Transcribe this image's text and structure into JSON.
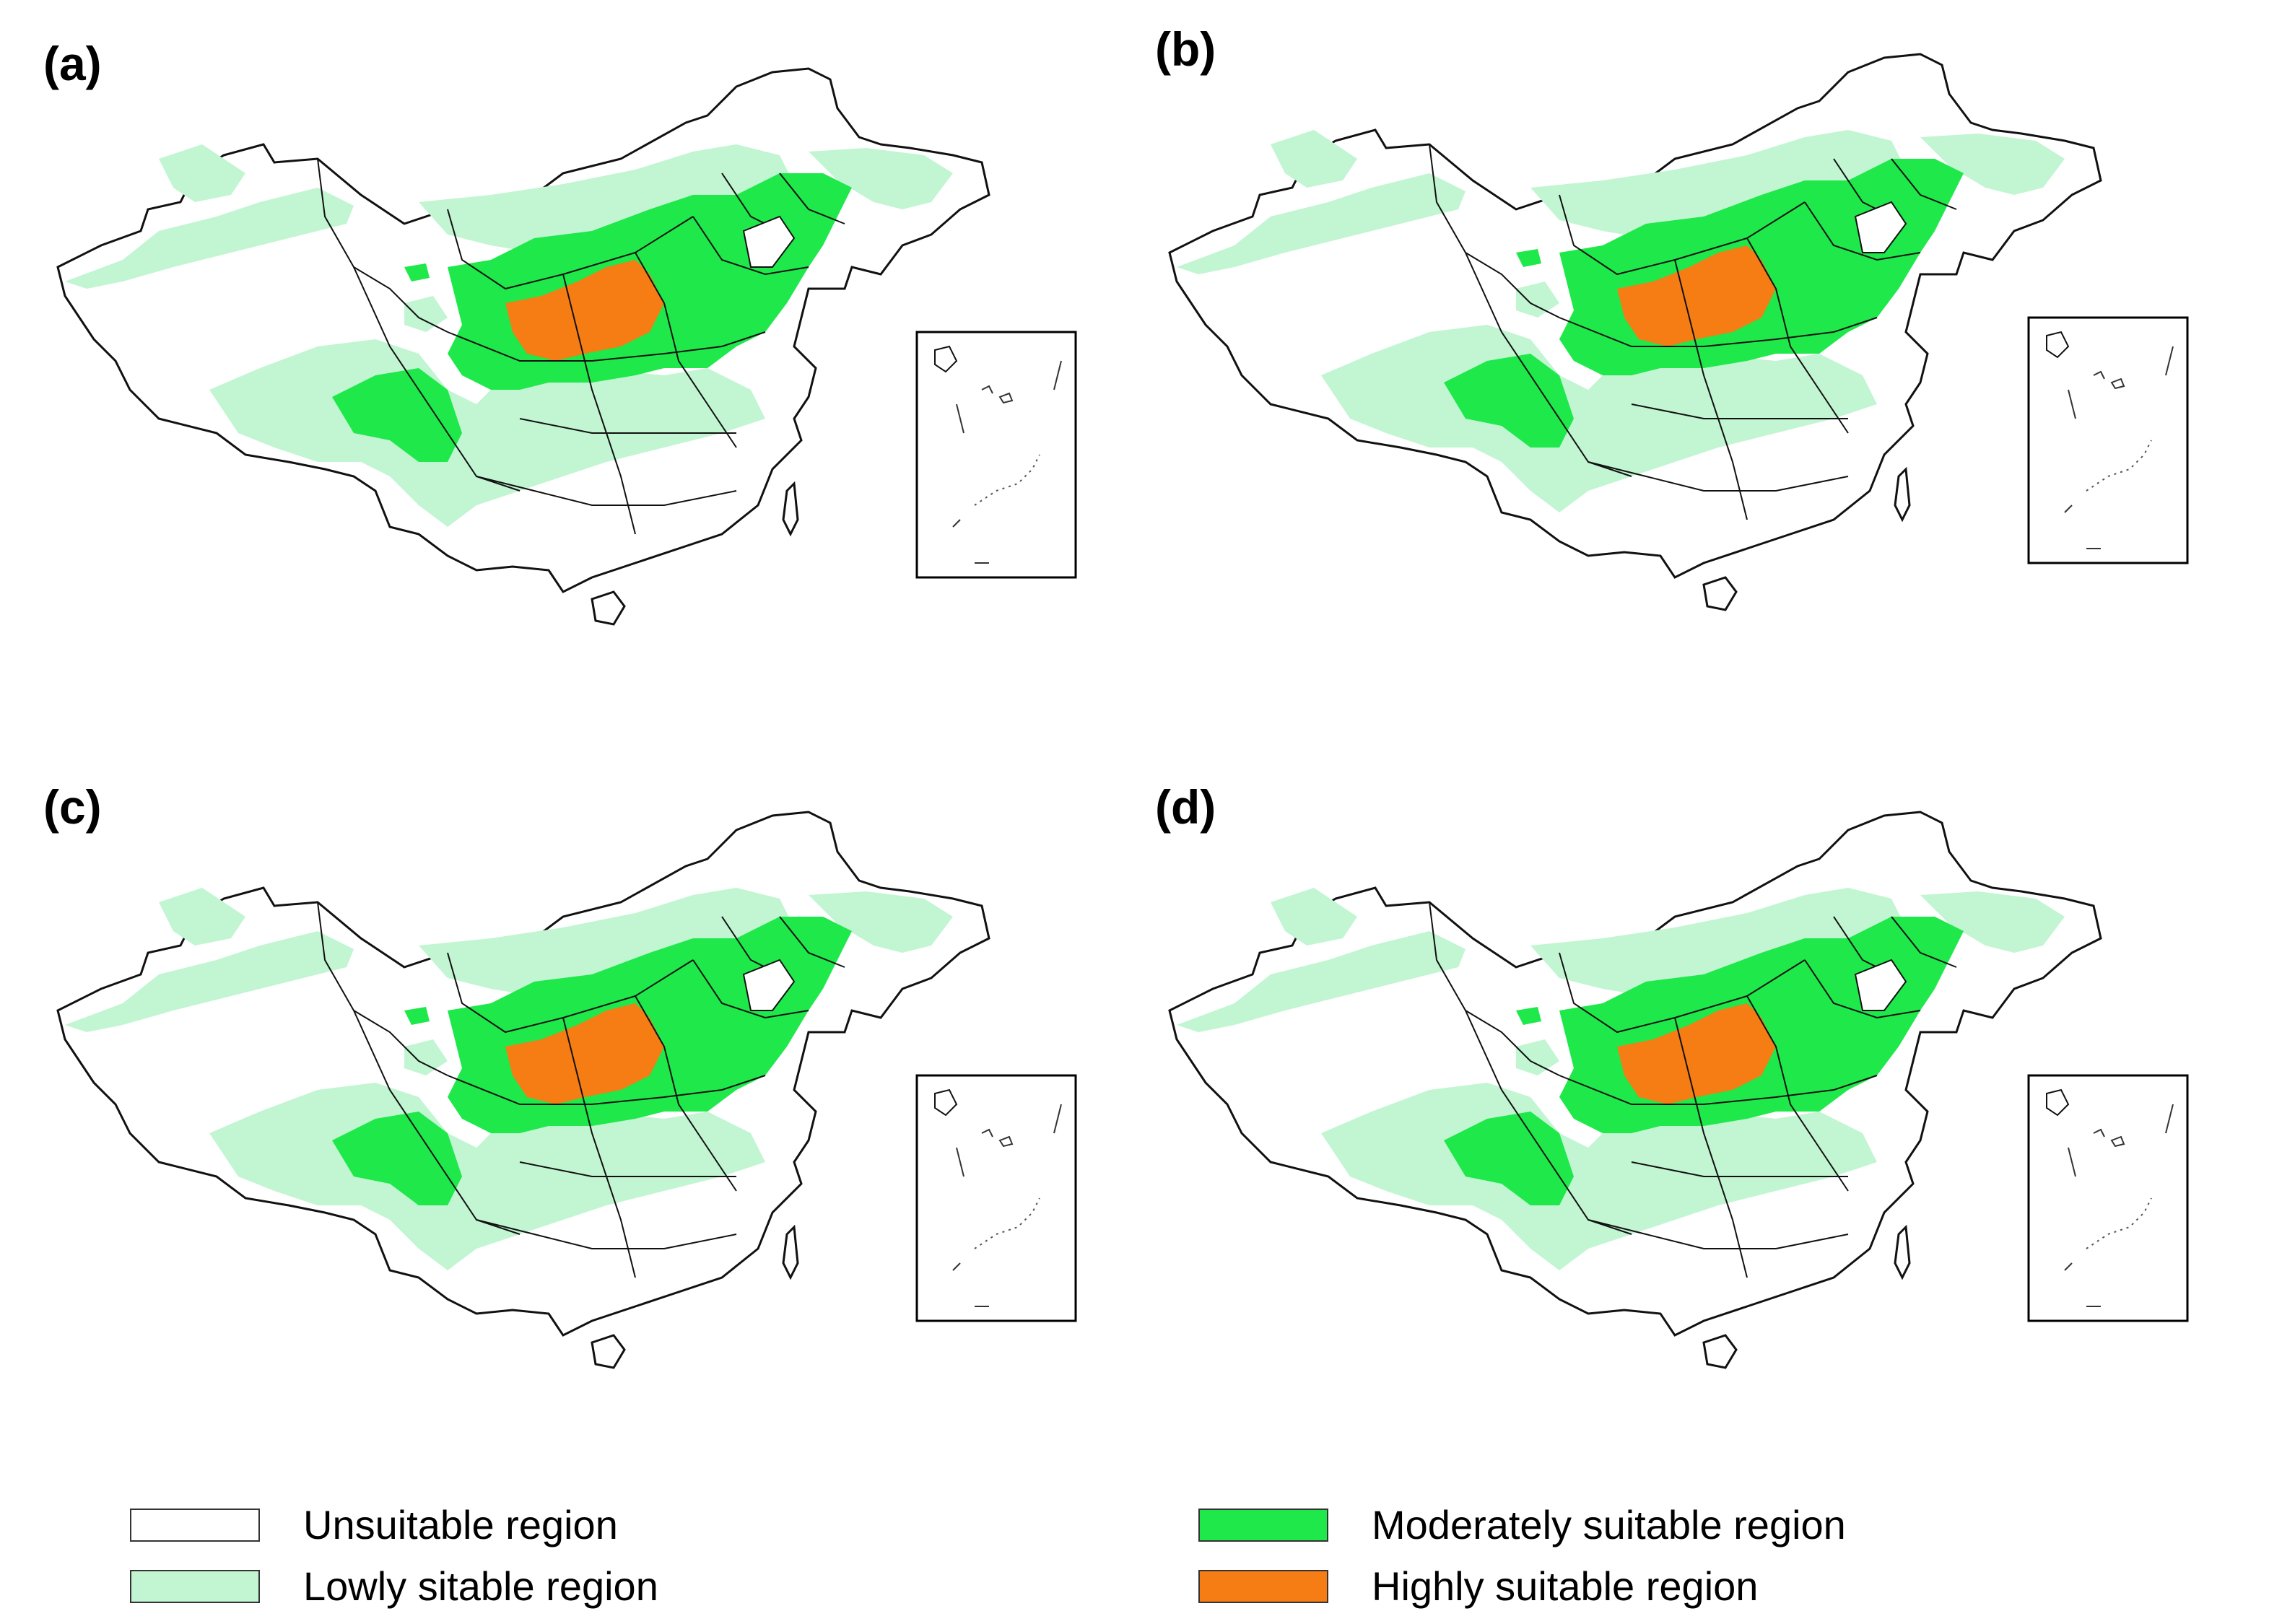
{
  "panels": [
    {
      "id": "a",
      "label": "(a)"
    },
    {
      "id": "b",
      "label": "(b)"
    },
    {
      "id": "c",
      "label": "(c)"
    },
    {
      "id": "d",
      "label": "(d)"
    }
  ],
  "legend": {
    "unsuitable": {
      "label": "Unsuitable region",
      "color": "#ffffff"
    },
    "low": {
      "label": "Lowly sitable region",
      "color": "#c2f5d2"
    },
    "moderate": {
      "label": "Moderately suitable region",
      "color": "#1ee84a"
    },
    "high": {
      "label": "Highly suitable region",
      "color": "#f57d14"
    }
  },
  "colors": {
    "outline": "#111111",
    "inset_frame": "#000000"
  }
}
